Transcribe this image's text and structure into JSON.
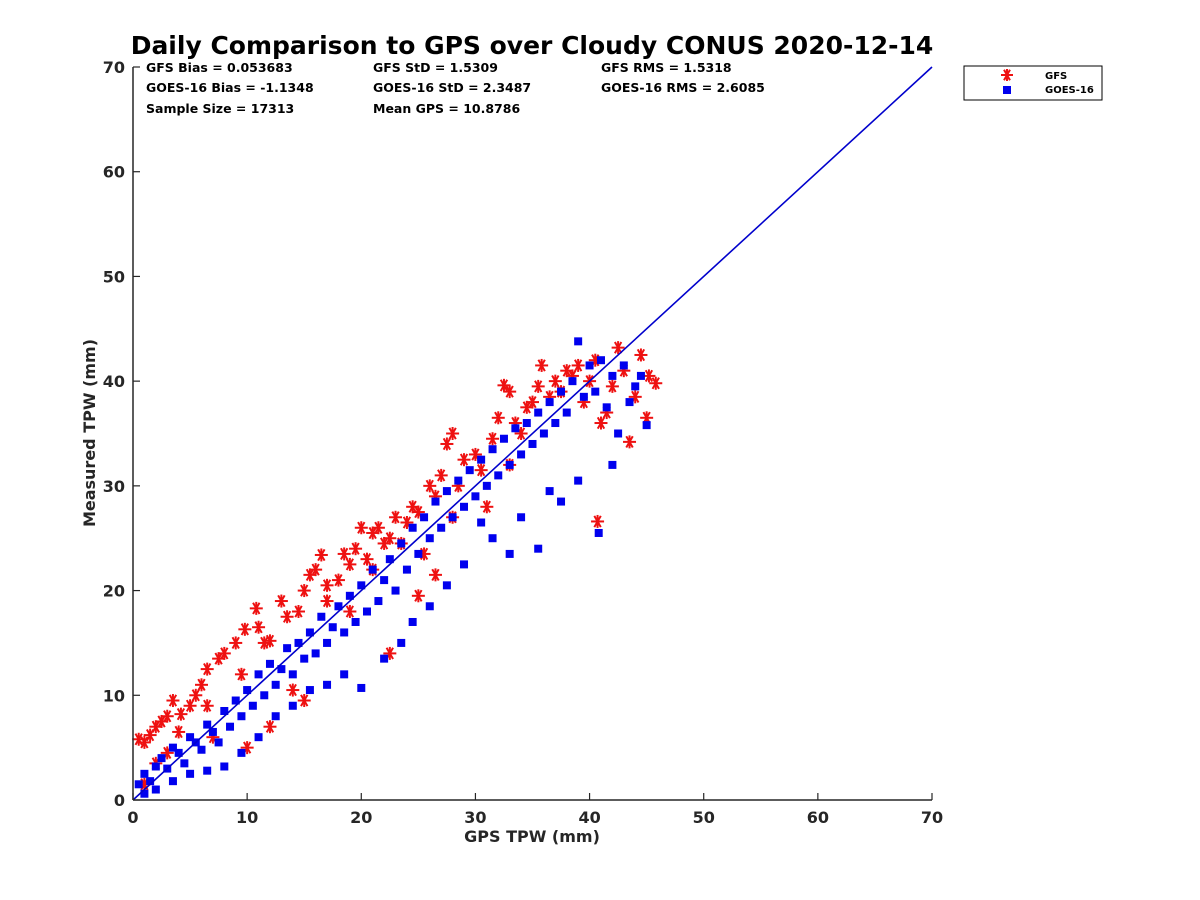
{
  "chart_data": {
    "type": "scatter",
    "title": "Daily Comparison to GPS over Cloudy CONUS 2020-12-14",
    "xlabel": "GPS TPW (mm)",
    "ylabel": "Measured TPW (mm)",
    "xlim": [
      0,
      70
    ],
    "ylim": [
      0,
      70
    ],
    "x_ticks": [
      "0",
      "10",
      "20",
      "30",
      "40",
      "50",
      "60",
      "70"
    ],
    "y_ticks": [
      "0",
      "10",
      "20",
      "30",
      "40",
      "50",
      "60",
      "70"
    ],
    "grid": false,
    "legend_position": "outside-top-right",
    "stats": [
      [
        "GFS Bias = 0.053683",
        "GFS StD = 1.5309",
        "GFS RMS = 1.5318"
      ],
      [
        "GOES-16 Bias = -1.1348",
        "GOES-16 StD = 2.3487",
        "GOES-16 RMS = 2.6085"
      ],
      [
        "Sample Size = 17313",
        "Mean GPS = 10.8786",
        ""
      ]
    ],
    "one_to_one_line": {
      "x": [
        0,
        70
      ],
      "y": [
        0,
        70
      ],
      "color": "#0000cc"
    },
    "series": [
      {
        "name": "GFS",
        "marker": "asterisk",
        "color": "#ee1111",
        "points": [
          [
            0.5,
            5.8
          ],
          [
            1.0,
            5.5
          ],
          [
            1.5,
            6.2
          ],
          [
            2.0,
            7.0
          ],
          [
            2.5,
            7.5
          ],
          [
            3.0,
            8.0
          ],
          [
            3.5,
            9.5
          ],
          [
            4.2,
            8.2
          ],
          [
            5.0,
            9.0
          ],
          [
            5.5,
            10.0
          ],
          [
            6.0,
            11.0
          ],
          [
            6.5,
            12.5
          ],
          [
            7.5,
            13.5
          ],
          [
            8.0,
            14.0
          ],
          [
            9.0,
            15.0
          ],
          [
            9.8,
            16.3
          ],
          [
            10.8,
            18.3
          ],
          [
            11.0,
            16.5
          ],
          [
            12.0,
            15.2
          ],
          [
            13.0,
            19.0
          ],
          [
            13.5,
            17.5
          ],
          [
            14.5,
            18.0
          ],
          [
            15.0,
            20.0
          ],
          [
            15.5,
            21.5
          ],
          [
            16.0,
            22.0
          ],
          [
            16.5,
            23.4
          ],
          [
            17.0,
            20.5
          ],
          [
            18.0,
            21.0
          ],
          [
            18.5,
            23.5
          ],
          [
            19.0,
            22.5
          ],
          [
            19.5,
            24.0
          ],
          [
            20.0,
            26.0
          ],
          [
            20.5,
            23.0
          ],
          [
            21.0,
            25.5
          ],
          [
            21.5,
            26.0
          ],
          [
            22.0,
            24.5
          ],
          [
            22.5,
            25.0
          ],
          [
            23.0,
            27.0
          ],
          [
            24.0,
            26.5
          ],
          [
            24.5,
            28.0
          ],
          [
            25.0,
            27.5
          ],
          [
            25.5,
            23.5
          ],
          [
            26.0,
            30.0
          ],
          [
            26.5,
            29.0
          ],
          [
            27.0,
            31.0
          ],
          [
            27.5,
            34.0
          ],
          [
            28.0,
            35.0
          ],
          [
            28.5,
            30.0
          ],
          [
            29.0,
            32.5
          ],
          [
            30.0,
            33.0
          ],
          [
            30.5,
            31.5
          ],
          [
            31.0,
            28.0
          ],
          [
            31.5,
            34.5
          ],
          [
            32.0,
            36.5
          ],
          [
            32.5,
            39.6
          ],
          [
            33.0,
            39.0
          ],
          [
            33.5,
            36.0
          ],
          [
            34.0,
            35.0
          ],
          [
            34.5,
            37.5
          ],
          [
            35.0,
            38.0
          ],
          [
            35.5,
            39.5
          ],
          [
            35.8,
            41.5
          ],
          [
            36.5,
            38.5
          ],
          [
            37.0,
            40.0
          ],
          [
            37.5,
            39.0
          ],
          [
            38.0,
            41.0
          ],
          [
            38.5,
            40.5
          ],
          [
            39.0,
            41.5
          ],
          [
            39.5,
            38.0
          ],
          [
            40.0,
            40.0
          ],
          [
            40.5,
            42.0
          ],
          [
            40.7,
            26.6
          ],
          [
            41.0,
            36.0
          ],
          [
            41.5,
            37.0
          ],
          [
            42.0,
            39.5
          ],
          [
            42.5,
            43.2
          ],
          [
            43.0,
            41.0
          ],
          [
            43.5,
            34.2
          ],
          [
            44.0,
            38.5
          ],
          [
            44.5,
            42.5
          ],
          [
            45.0,
            36.5
          ],
          [
            45.2,
            40.5
          ],
          [
            45.8,
            39.8
          ],
          [
            11.5,
            15.0
          ],
          [
            9.5,
            12.0
          ],
          [
            6.5,
            9.0
          ],
          [
            4.0,
            6.5
          ],
          [
            3.0,
            4.5
          ],
          [
            2.0,
            3.5
          ],
          [
            7.0,
            6.0
          ],
          [
            10.0,
            5.0
          ],
          [
            15.0,
            9.5
          ],
          [
            14.0,
            10.5
          ],
          [
            22.5,
            14.0
          ],
          [
            25.0,
            19.5
          ],
          [
            26.5,
            21.5
          ],
          [
            12.0,
            7.0
          ],
          [
            1.0,
            1.5
          ],
          [
            17.0,
            19.0
          ],
          [
            19.0,
            18.0
          ],
          [
            21.0,
            22.0
          ],
          [
            23.5,
            24.5
          ],
          [
            28.0,
            27.0
          ],
          [
            33.0,
            32.0
          ]
        ]
      },
      {
        "name": "GOES-16",
        "marker": "square",
        "color": "#0000ee",
        "points": [
          [
            0.5,
            1.5
          ],
          [
            1.0,
            2.5
          ],
          [
            1.5,
            1.8
          ],
          [
            2.0,
            3.2
          ],
          [
            2.5,
            4.0
          ],
          [
            3.0,
            3.0
          ],
          [
            3.5,
            5.0
          ],
          [
            4.0,
            4.5
          ],
          [
            4.5,
            3.5
          ],
          [
            5.0,
            6.0
          ],
          [
            5.5,
            5.5
          ],
          [
            6.0,
            4.8
          ],
          [
            6.5,
            7.2
          ],
          [
            7.0,
            6.5
          ],
          [
            7.5,
            5.5
          ],
          [
            8.0,
            8.5
          ],
          [
            8.5,
            7.0
          ],
          [
            9.0,
            9.5
          ],
          [
            9.5,
            8.0
          ],
          [
            10.0,
            10.5
          ],
          [
            10.5,
            9.0
          ],
          [
            11.0,
            12.0
          ],
          [
            11.5,
            10.0
          ],
          [
            12.0,
            13.0
          ],
          [
            12.5,
            11.0
          ],
          [
            13.0,
            12.5
          ],
          [
            13.5,
            14.5
          ],
          [
            14.0,
            12.0
          ],
          [
            14.5,
            15.0
          ],
          [
            15.0,
            13.5
          ],
          [
            15.5,
            16.0
          ],
          [
            16.0,
            14.0
          ],
          [
            16.5,
            17.5
          ],
          [
            17.0,
            15.0
          ],
          [
            17.5,
            16.5
          ],
          [
            18.0,
            18.5
          ],
          [
            18.5,
            16.0
          ],
          [
            19.0,
            19.5
          ],
          [
            19.5,
            17.0
          ],
          [
            20.0,
            20.5
          ],
          [
            20.5,
            18.0
          ],
          [
            21.0,
            22.0
          ],
          [
            21.5,
            19.0
          ],
          [
            22.0,
            21.0
          ],
          [
            22.5,
            23.0
          ],
          [
            23.0,
            20.0
          ],
          [
            23.5,
            24.5
          ],
          [
            24.0,
            22.0
          ],
          [
            24.5,
            26.0
          ],
          [
            25.0,
            23.5
          ],
          [
            25.5,
            27.0
          ],
          [
            26.0,
            25.0
          ],
          [
            26.5,
            28.5
          ],
          [
            27.0,
            26.0
          ],
          [
            27.5,
            29.5
          ],
          [
            28.0,
            27.0
          ],
          [
            28.5,
            30.5
          ],
          [
            29.0,
            28.0
          ],
          [
            29.5,
            31.5
          ],
          [
            30.0,
            29.0
          ],
          [
            30.5,
            32.5
          ],
          [
            31.0,
            30.0
          ],
          [
            31.5,
            33.5
          ],
          [
            32.0,
            31.0
          ],
          [
            32.5,
            34.5
          ],
          [
            33.0,
            32.0
          ],
          [
            33.5,
            35.5
          ],
          [
            34.0,
            33.0
          ],
          [
            34.5,
            36.0
          ],
          [
            35.0,
            34.0
          ],
          [
            35.5,
            37.0
          ],
          [
            36.0,
            35.0
          ],
          [
            36.5,
            38.0
          ],
          [
            37.0,
            36.0
          ],
          [
            37.5,
            39.0
          ],
          [
            38.0,
            37.0
          ],
          [
            38.5,
            40.0
          ],
          [
            39.0,
            43.8
          ],
          [
            39.5,
            38.5
          ],
          [
            40.0,
            41.5
          ],
          [
            40.5,
            39.0
          ],
          [
            41.0,
            42.0
          ],
          [
            41.5,
            37.5
          ],
          [
            42.0,
            40.5
          ],
          [
            42.5,
            35.0
          ],
          [
            43.0,
            41.5
          ],
          [
            43.5,
            38.0
          ],
          [
            44.0,
            39.5
          ],
          [
            44.5,
            40.5
          ],
          [
            45.0,
            35.8
          ],
          [
            40.8,
            25.5
          ],
          [
            35.5,
            24.0
          ],
          [
            33.0,
            23.5
          ],
          [
            31.5,
            25.0
          ],
          [
            29.0,
            22.5
          ],
          [
            27.5,
            20.5
          ],
          [
            26.0,
            18.5
          ],
          [
            24.5,
            17.0
          ],
          [
            23.5,
            15.0
          ],
          [
            22.0,
            13.5
          ],
          [
            20.0,
            10.7
          ],
          [
            18.5,
            12.0
          ],
          [
            17.0,
            11.0
          ],
          [
            15.5,
            10.5
          ],
          [
            14.0,
            9.0
          ],
          [
            12.5,
            8.0
          ],
          [
            11.0,
            6.0
          ],
          [
            9.5,
            4.5
          ],
          [
            8.0,
            3.2
          ],
          [
            6.5,
            2.8
          ],
          [
            5.0,
            2.5
          ],
          [
            3.5,
            1.8
          ],
          [
            2.0,
            1.0
          ],
          [
            1.0,
            0.6
          ],
          [
            37.5,
            28.5
          ],
          [
            36.5,
            29.5
          ],
          [
            34.0,
            27.0
          ],
          [
            30.5,
            26.5
          ],
          [
            42.0,
            32.0
          ],
          [
            39.0,
            30.5
          ]
        ]
      }
    ]
  }
}
